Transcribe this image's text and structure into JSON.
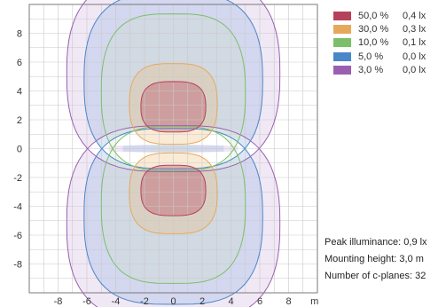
{
  "chart_data": {
    "type": "contour",
    "xlim": [
      -10,
      10
    ],
    "ylim": [
      -10,
      10
    ],
    "x_ticks": [
      -8,
      -6,
      -4,
      -2,
      0,
      2,
      4,
      6,
      8
    ],
    "y_ticks": [
      8,
      6,
      4,
      2,
      0,
      -2,
      -4,
      -6,
      -8
    ],
    "x_unit": "m",
    "grid": true,
    "legend_position": "top-right",
    "series": [
      {
        "pct": "50,0 %",
        "lux": "0,4 lx",
        "color": "#b5425a",
        "fill": "rgba(181,66,90,0.35)",
        "lobe": {
          "cx": 0,
          "cy": 2.9,
          "hw": 2.25,
          "hh": 1.75
        },
        "waist": null
      },
      {
        "pct": "30,0 %",
        "lux": "0,3 lx",
        "color": "#e6a95c",
        "fill": "rgba(240,190,120,0.30)",
        "lobe": {
          "cx": 0,
          "cy": 3.1,
          "hw": 3.05,
          "hh": 2.8
        },
        "waist": null
      },
      {
        "pct": "10,0 %",
        "lux": "0,1 lx",
        "color": "#7cbf6a",
        "fill": "rgba(205,224,190,0.25)",
        "lobe": {
          "cx": 0,
          "cy": 3.9,
          "hw": 5.0,
          "hh": 5.45
        },
        "waist": 1.6
      },
      {
        "pct": "5,0 %",
        "lux": "0,0 lx",
        "color": "#4a86c8",
        "fill": "rgba(150,180,225,0.32)",
        "lobe": {
          "cx": 0,
          "cy": 4.7,
          "hw": 6.2,
          "hh": 6.1
        },
        "waist": 3.5
      },
      {
        "pct": "3,0 %",
        "lux": "0,0 lx",
        "color": "#9a5fb0",
        "fill": "rgba(215,190,228,0.35)",
        "lobe": {
          "cx": 0,
          "cy": 5.2,
          "hw": 7.4,
          "hh": 6.8
        },
        "waist": 4.5
      }
    ]
  },
  "info": {
    "peak": "Peak illuminance: 0,9 lx",
    "mounting": "Mounting height: 3,0 m",
    "cplanes": "Number of c-planes: 32"
  }
}
